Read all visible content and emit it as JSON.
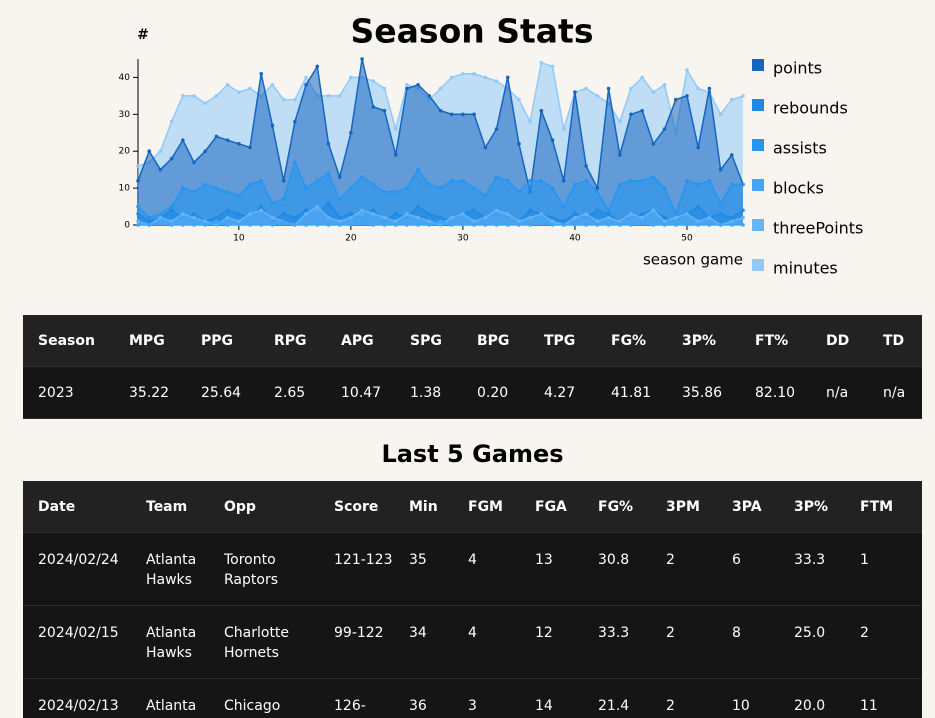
{
  "chart_data": {
    "type": "area",
    "title": "Season Stats",
    "y_label": "#",
    "x_label": "season game",
    "x": [
      1,
      2,
      3,
      4,
      5,
      6,
      7,
      8,
      9,
      10,
      11,
      12,
      13,
      14,
      15,
      16,
      17,
      18,
      19,
      20,
      21,
      22,
      23,
      24,
      25,
      26,
      27,
      28,
      29,
      30,
      31,
      32,
      33,
      34,
      35,
      36,
      37,
      38,
      39,
      40,
      41,
      42,
      43,
      44,
      45,
      46,
      47,
      48,
      49,
      50,
      51,
      52,
      53,
      54,
      55
    ],
    "xlim": [
      1,
      55
    ],
    "xticks": [
      10,
      20,
      30,
      40,
      50
    ],
    "ylim": [
      0,
      45
    ],
    "yticks": [
      0,
      10,
      20,
      30,
      40
    ],
    "series": [
      {
        "name": "points",
        "color": "#1565c0",
        "values": [
          12,
          20,
          15,
          18,
          23,
          17,
          20,
          24,
          23,
          22,
          21,
          41,
          27,
          12,
          28,
          38,
          43,
          22,
          13,
          25,
          45,
          32,
          31,
          19,
          37,
          38,
          35,
          31,
          30,
          30,
          30,
          21,
          26,
          40,
          22,
          9,
          31,
          23,
          12,
          36,
          16,
          10,
          37,
          19,
          30,
          31,
          22,
          26,
          34,
          35,
          21,
          37,
          15,
          19,
          11
        ]
      },
      {
        "name": "rebounds",
        "color": "#1e88e5",
        "values": [
          3,
          1,
          2,
          4,
          2,
          3,
          1,
          2,
          4,
          3,
          2,
          5,
          1,
          3,
          2,
          4,
          3,
          6,
          2,
          3,
          2,
          4,
          1,
          3,
          2,
          5,
          3,
          2,
          1,
          3,
          4,
          2,
          3,
          2,
          1,
          4,
          3,
          2,
          1,
          3,
          2,
          4,
          3,
          1,
          2,
          3,
          4,
          2,
          1,
          3,
          5,
          2,
          3,
          2,
          4
        ]
      },
      {
        "name": "assists",
        "color": "#2196f3",
        "values": [
          5,
          2,
          3,
          5,
          10,
          9,
          11,
          10,
          9,
          8,
          11,
          12,
          6,
          7,
          17,
          10,
          12,
          14,
          7,
          10,
          13,
          11,
          9,
          9,
          10,
          15,
          11,
          10,
          12,
          12,
          10,
          8,
          13,
          12,
          9,
          12,
          12,
          10,
          5,
          11,
          12,
          9,
          4,
          11,
          12,
          12,
          13,
          10,
          3,
          12,
          11,
          12,
          6,
          11,
          11
        ]
      },
      {
        "name": "blocks",
        "color": "#42a5f5",
        "values": [
          0,
          0,
          1,
          0,
          0,
          0,
          0,
          1,
          0,
          0,
          0,
          0,
          0,
          1,
          0,
          0,
          0,
          0,
          0,
          0,
          1,
          0,
          0,
          0,
          0,
          0,
          0,
          1,
          0,
          0,
          0,
          0,
          0,
          0,
          0,
          0,
          1,
          0,
          0,
          0,
          0,
          0,
          0,
          0,
          0,
          1,
          0,
          0,
          0,
          0,
          0,
          0,
          0,
          0,
          0
        ]
      },
      {
        "name": "threePoints",
        "color": "#64b5f6",
        "values": [
          1,
          0,
          2,
          1,
          3,
          2,
          1,
          0,
          2,
          1,
          3,
          4,
          2,
          1,
          0,
          3,
          5,
          2,
          1,
          2,
          4,
          3,
          2,
          1,
          3,
          2,
          1,
          0,
          2,
          3,
          1,
          2,
          4,
          3,
          1,
          2,
          3,
          1,
          0,
          2,
          3,
          1,
          2,
          1,
          3,
          2,
          4,
          1,
          2,
          3,
          1,
          2,
          0,
          1,
          2
        ]
      },
      {
        "name": "minutes",
        "color": "#90caf9",
        "values": [
          16,
          17,
          20,
          28,
          35,
          35,
          33,
          35,
          38,
          36,
          37,
          35,
          38,
          34,
          34,
          40,
          35,
          35,
          35,
          40,
          40,
          39,
          37,
          26,
          38,
          37,
          34,
          37,
          40,
          41,
          41,
          40,
          39,
          37,
          34,
          28,
          44,
          43,
          26,
          36,
          37,
          35,
          33,
          28,
          37,
          40,
          36,
          38,
          25,
          42,
          37,
          36,
          30,
          34,
          35
        ]
      }
    ]
  },
  "season_table": {
    "headers": [
      "Season",
      "MPG",
      "PPG",
      "RPG",
      "APG",
      "SPG",
      "BPG",
      "TPG",
      "FG%",
      "3P%",
      "FT%",
      "DD",
      "TD"
    ],
    "rows": [
      [
        "2023",
        "35.22",
        "25.64",
        "2.65",
        "10.47",
        "1.38",
        "0.20",
        "4.27",
        "41.81",
        "35.86",
        "82.10",
        "n/a",
        "n/a"
      ]
    ]
  },
  "games_table": {
    "title": "Last 5 Games",
    "headers": [
      "Date",
      "Team",
      "Opp",
      "Score",
      "Min",
      "FGM",
      "FGA",
      "FG%",
      "3PM",
      "3PA",
      "3P%",
      "FTM"
    ],
    "rows": [
      [
        "2024/02/24",
        "Atlanta Hawks",
        "Toronto Raptors",
        "121-123",
        "35",
        "4",
        "13",
        "30.8",
        "2",
        "6",
        "33.3",
        "1"
      ],
      [
        "2024/02/15",
        "Atlanta Hawks",
        "Charlotte Hornets",
        "99-122",
        "34",
        "4",
        "12",
        "33.3",
        "2",
        "8",
        "25.0",
        "2"
      ],
      [
        "2024/02/13",
        "Atlanta",
        "Chicago",
        "126-",
        "36",
        "3",
        "14",
        "21.4",
        "2",
        "10",
        "20.0",
        "11"
      ]
    ]
  }
}
